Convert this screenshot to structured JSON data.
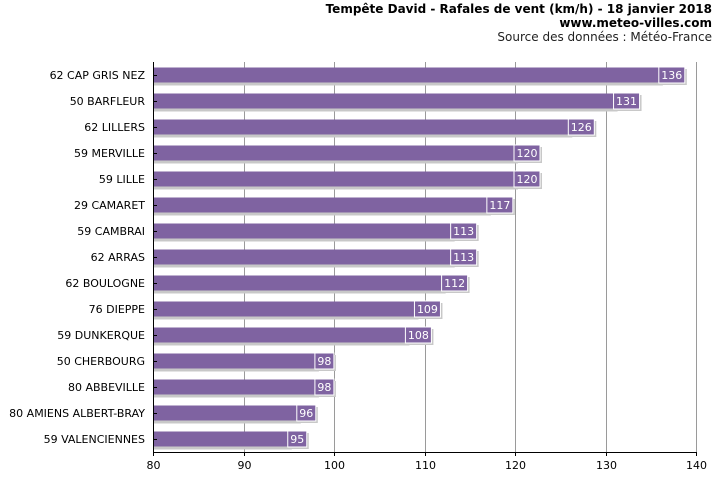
{
  "header": {
    "title": "Tempête David - Rafales de vent (km/h) - 18 janvier 2018",
    "site": "www.meteo-villes.com",
    "source": "Source des données : Météo-France"
  },
  "colors": {
    "bar": "#7f63a1",
    "bar_shadow": "#c8c8c8",
    "label_box": "#7f63a1",
    "grid": "#9a9a9a",
    "axis": "#000000"
  },
  "chart_data": {
    "type": "bar",
    "orientation": "horizontal",
    "title": "Tempête David - Rafales de vent (km/h) - 18 janvier 2018",
    "xlabel": "",
    "ylabel": "",
    "xlim": [
      80,
      140
    ],
    "xticks": [
      80,
      90,
      100,
      110,
      120,
      130,
      140
    ],
    "grid": true,
    "legend": "none",
    "categories": [
      "62 CAP GRIS NEZ",
      "50 BARFLEUR",
      "62 LILLERS",
      "59 MERVILLE",
      "59 LILLE",
      "29 CAMARET",
      "59 CAMBRAI",
      "62 ARRAS",
      "62 BOULOGNE",
      "76 DIEPPE",
      "59 DUNKERQUE",
      "50 CHERBOURG",
      "80 ABBEVILLE",
      "80 AMIENS ALBERT-BRAY",
      "59 VALENCIENNES"
    ],
    "values": [
      136,
      131,
      126,
      120,
      120,
      117,
      113,
      113,
      112,
      109,
      108,
      98,
      98,
      96,
      95
    ]
  }
}
